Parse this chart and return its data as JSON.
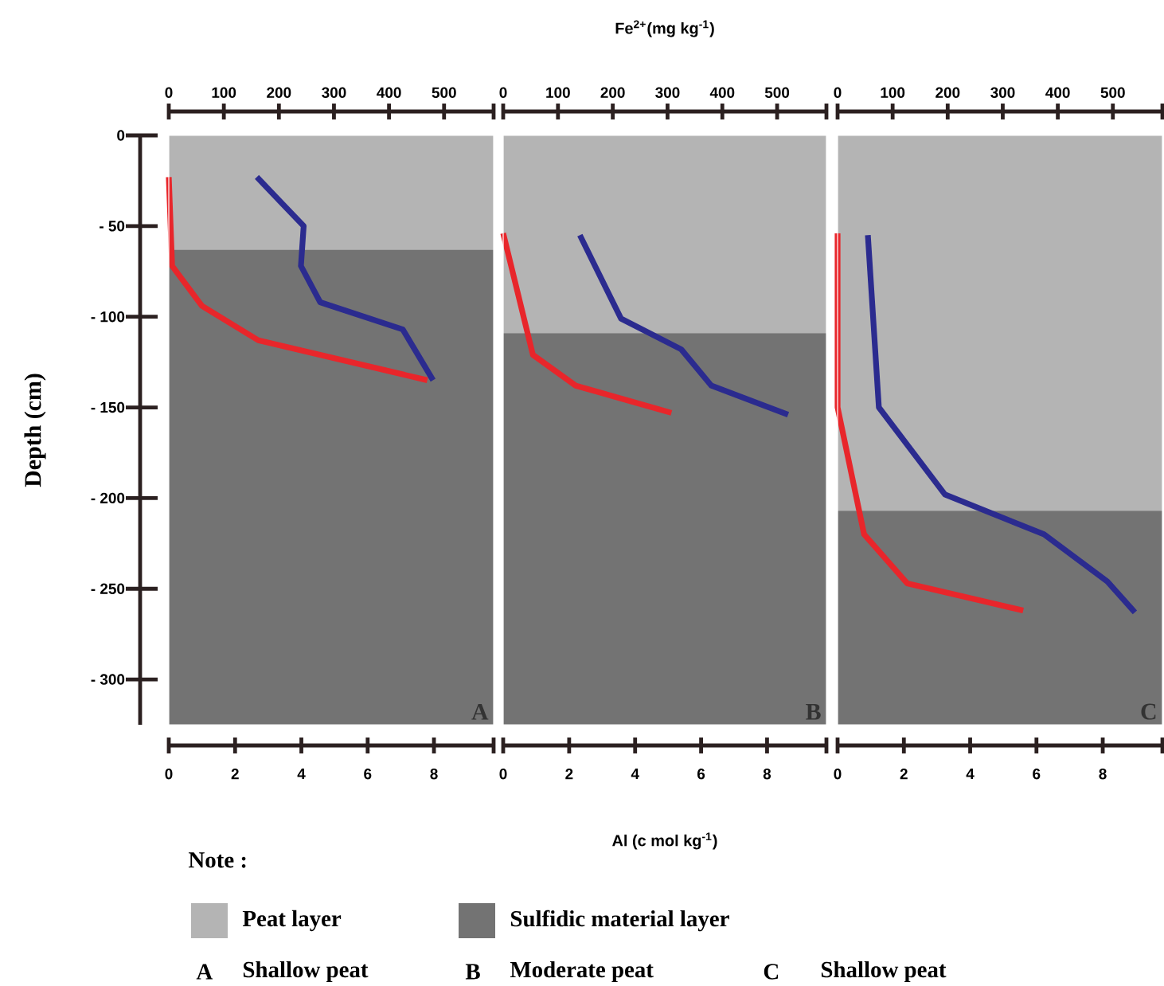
{
  "chart_data": [
    {
      "type": "line",
      "legend": "bottom",
      "ylabel": "Depth (cm)",
      "xlim": [
        0,
        9.8
      ],
      "xticks": [
        0,
        2,
        4,
        6,
        8
      ],
      "x2lim": [
        0,
        590
      ],
      "x2ticks": [
        0,
        100,
        200,
        300,
        400,
        500
      ],
      "ylim": [
        -325,
        0
      ],
      "yticks": [
        0,
        {
          "value": -50,
          "label": "- 50"
        },
        {
          "value": -100,
          "label": "- 100"
        },
        {
          "value": -150,
          "label": "- 150"
        },
        {
          "value": -200,
          "label": "- 200"
        },
        {
          "value": -250,
          "label": "- 250"
        },
        {
          "value": -300,
          "label": "- 300"
        }
      ],
      "bands": [
        {
          "axis": "y",
          "from": 0,
          "to": -63,
          "color": "#b4b4b4",
          "label": "Peat layer"
        },
        {
          "axis": "y",
          "from": -63,
          "to": -325,
          "color": "#737373",
          "label": "Sulfidic material layer"
        }
      ],
      "series": [
        {
          "color": "#e8262b",
          "x": [
            0,
            0.1,
            1.0,
            2.7,
            7.8
          ],
          "values": [
            -23,
            -72,
            -94,
            -113,
            -135
          ]
        },
        {
          "color": "#2b2b8f",
          "axis": "x2",
          "x": [
            160,
            245,
            240,
            275,
            425,
            480
          ],
          "values": [
            -23,
            -50,
            -72,
            -92,
            -107,
            -135
          ]
        }
      ],
      "annotations": [
        "A",
        "Shallow peat",
        "Note :"
      ]
    },
    {
      "type": "line",
      "xlabel": "Al (c mol kg$^{-1}$)",
      "x2label": "Fe$^{2+}$(mg kg$^{-1}$)",
      "tick_labels": "x",
      "xlim": [
        0,
        9.8
      ],
      "xticks": [
        0,
        2,
        4,
        6,
        8
      ],
      "x2lim": [
        0,
        590
      ],
      "x2ticks": [
        0,
        100,
        200,
        300,
        400,
        500
      ],
      "ylim": [
        -325,
        0
      ],
      "bands": [
        {
          "axis": "y",
          "from": 0,
          "to": -109,
          "color": "#b4b4b4"
        },
        {
          "axis": "y",
          "from": -109,
          "to": -325,
          "color": "#737373"
        }
      ],
      "series": [
        {
          "color": "#e8262b",
          "x": [
            0,
            0.9,
            2.2,
            5.1
          ],
          "values": [
            -54,
            -121,
            -138,
            -153
          ]
        },
        {
          "color": "#2b2b8f",
          "axis": "x2",
          "x": [
            140,
            215,
            325,
            380,
            520
          ],
          "values": [
            -55,
            -101,
            -118,
            -138,
            -154
          ]
        }
      ],
      "annotations": [
        "B",
        "Moderate  peat"
      ]
    },
    {
      "type": "line",
      "tick_labels": "x",
      "xlim": [
        0,
        9.8
      ],
      "xticks": [
        0,
        2,
        4,
        6,
        8
      ],
      "x2lim": [
        0,
        590
      ],
      "x2ticks": [
        0,
        100,
        200,
        300,
        400,
        500
      ],
      "ylim": [
        -325,
        0
      ],
      "bands": [
        {
          "axis": "y",
          "from": 0,
          "to": -207,
          "color": "#b4b4b4"
        },
        {
          "axis": "y",
          "from": -207,
          "to": -325,
          "color": "#737373"
        }
      ],
      "series": [
        {
          "color": "#e8262b",
          "x": [
            0,
            0,
            0.8,
            2.1,
            5.6
          ],
          "values": [
            -54,
            -150,
            -220,
            -247,
            -262
          ]
        },
        {
          "color": "#2b2b8f",
          "axis": "x2",
          "x": [
            55,
            75,
            195,
            375,
            490,
            540
          ],
          "values": [
            -55,
            -150,
            -198,
            -220,
            -246,
            -263
          ]
        }
      ],
      "annotations": [
        "C",
        "Shallow peat"
      ]
    }
  ]
}
